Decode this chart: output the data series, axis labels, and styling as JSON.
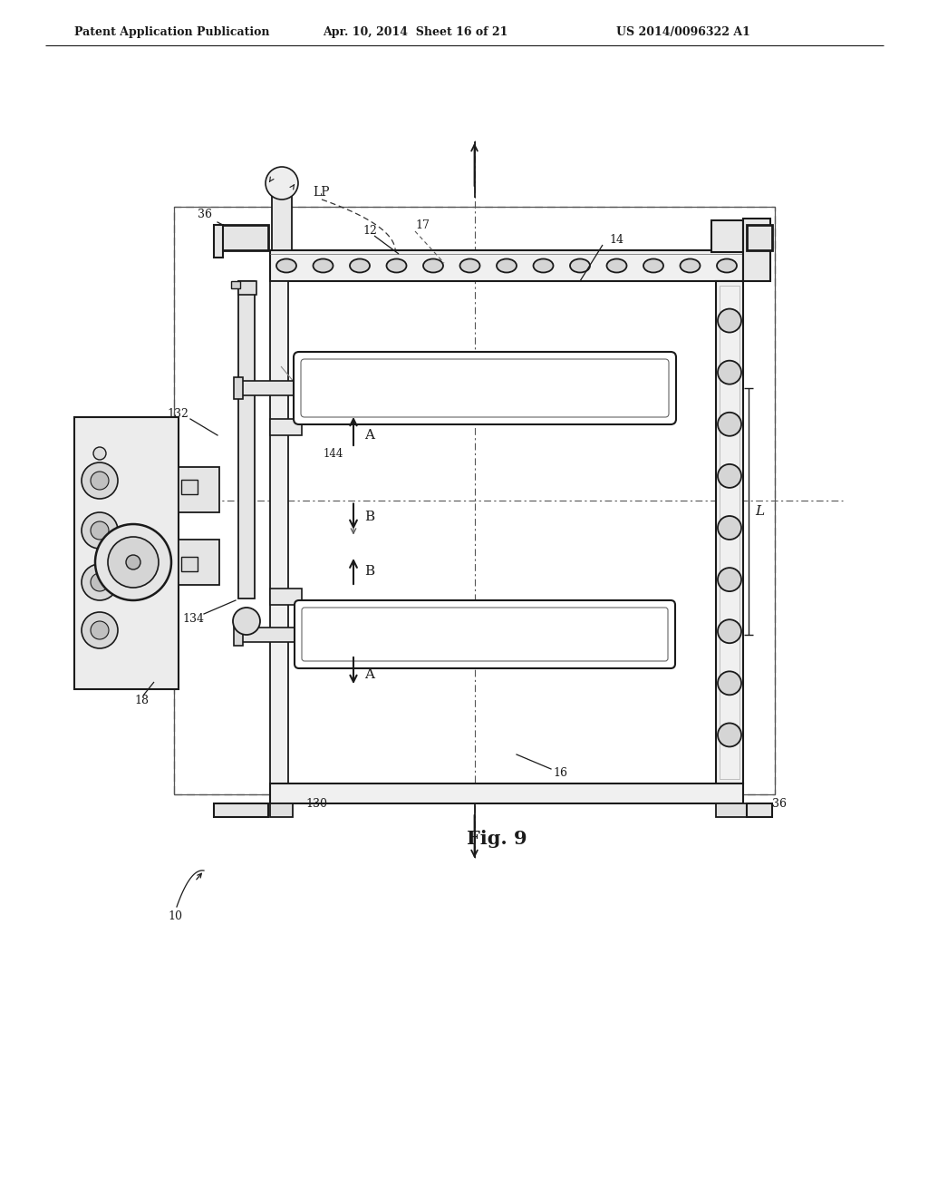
{
  "background_color": "#ffffff",
  "header_left": "Patent Application Publication",
  "header_mid": "Apr. 10, 2014  Sheet 16 of 21",
  "header_right": "US 2014/0096322 A1",
  "fig_label": "Fig. 9",
  "line_color": "#1a1a1a"
}
